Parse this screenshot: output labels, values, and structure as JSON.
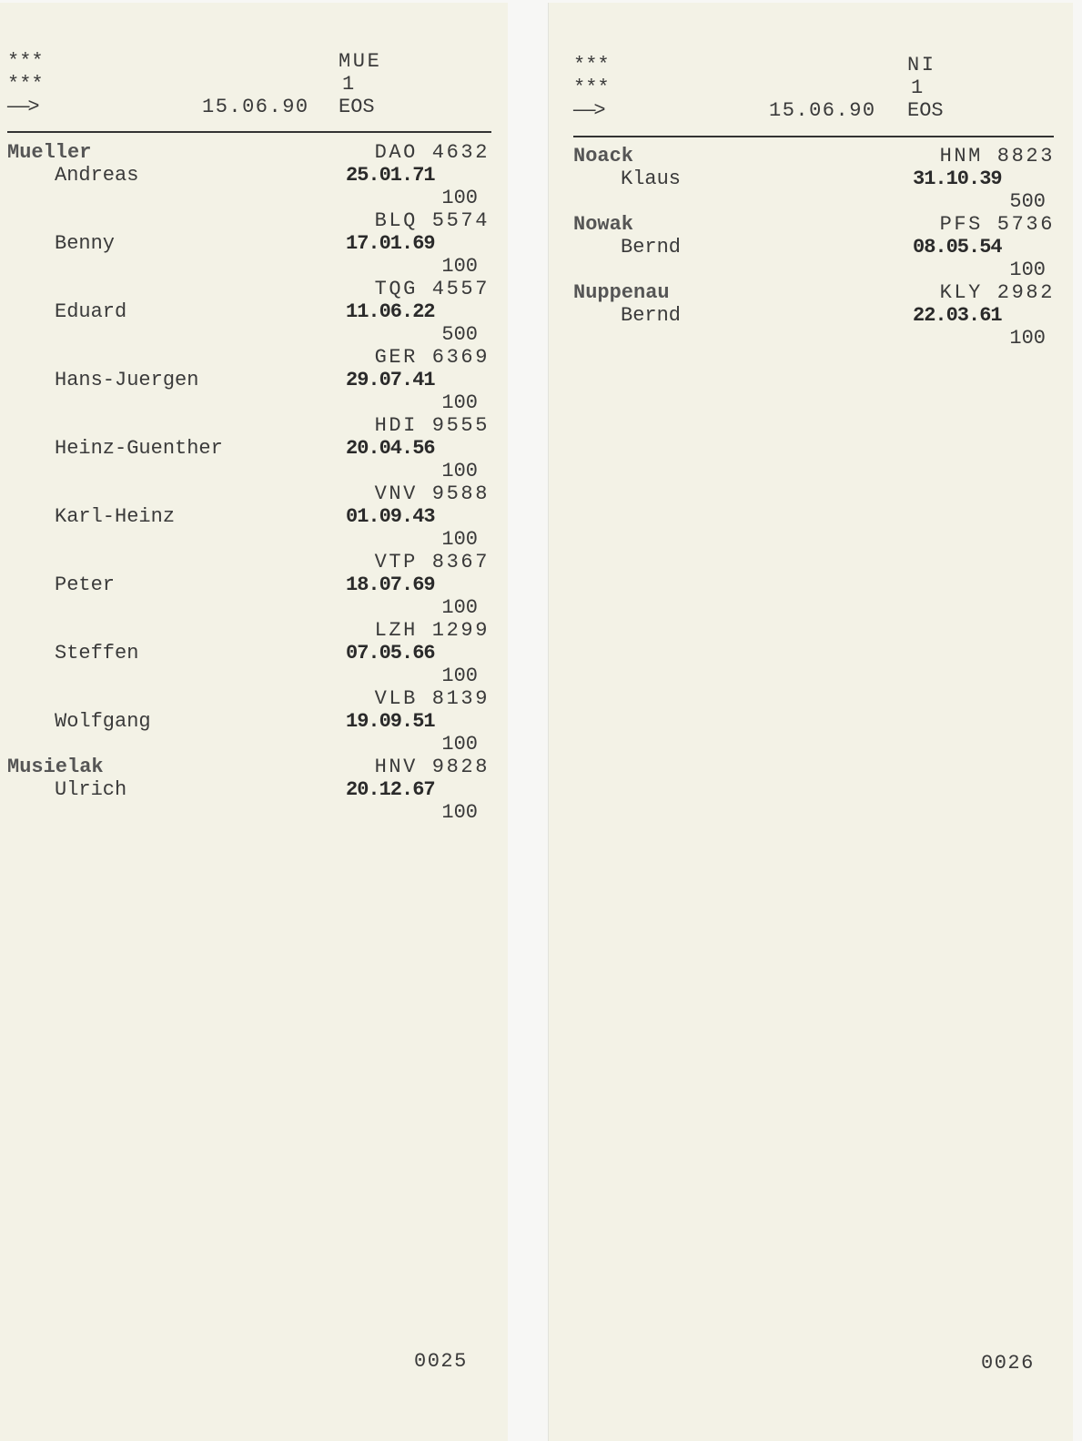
{
  "pages": [
    {
      "header": {
        "stars1": "***",
        "stars2": "***",
        "arrow": "——>",
        "code": "MUE",
        "number": "1",
        "date": "15.06.90",
        "label": "EOS"
      },
      "entries": [
        {
          "surname": "Mueller",
          "given": "Andreas",
          "code": "DAO 4632",
          "birth": "25.01.71",
          "amount": "100"
        },
        {
          "surname": "",
          "given": "Benny",
          "code": "BLQ 5574",
          "birth": "17.01.69",
          "amount": "100"
        },
        {
          "surname": "",
          "given": "Eduard",
          "code": "TQG 4557",
          "birth": "11.06.22",
          "amount": "500"
        },
        {
          "surname": "",
          "given": "Hans-Juergen",
          "code": "GER 6369",
          "birth": "29.07.41",
          "amount": "100"
        },
        {
          "surname": "",
          "given": "Heinz-Guenther",
          "code": "HDI 9555",
          "birth": "20.04.56",
          "amount": "100"
        },
        {
          "surname": "",
          "given": "Karl-Heinz",
          "code": "VNV 9588",
          "birth": "01.09.43",
          "amount": "100"
        },
        {
          "surname": "",
          "given": "Peter",
          "code": "VTP 8367",
          "birth": "18.07.69",
          "amount": "100"
        },
        {
          "surname": "",
          "given": "Steffen",
          "code": "LZH 1299",
          "birth": "07.05.66",
          "amount": "100"
        },
        {
          "surname": "",
          "given": "Wolfgang",
          "code": "VLB 8139",
          "birth": "19.09.51",
          "amount": "100"
        },
        {
          "surname": "Musielak",
          "given": "Ulrich",
          "code": "HNV 9828",
          "birth": "20.12.67",
          "amount": "100"
        }
      ],
      "page_number": "0025"
    },
    {
      "header": {
        "stars1": "***",
        "stars2": "***",
        "arrow": "——>",
        "code": "NI",
        "number": "1",
        "date": "15.06.90",
        "label": "EOS"
      },
      "entries": [
        {
          "surname": "Noack",
          "given": "Klaus",
          "code": "HNM 8823",
          "birth": "31.10.39",
          "amount": "500"
        },
        {
          "surname": "Nowak",
          "given": "Bernd",
          "code": "PFS 5736",
          "birth": "08.05.54",
          "amount": "100"
        },
        {
          "surname": "Nuppenau",
          "given": "Bernd",
          "code": "KLY 2982",
          "birth": "22.03.61",
          "amount": "100"
        }
      ],
      "page_number": "0026"
    }
  ]
}
